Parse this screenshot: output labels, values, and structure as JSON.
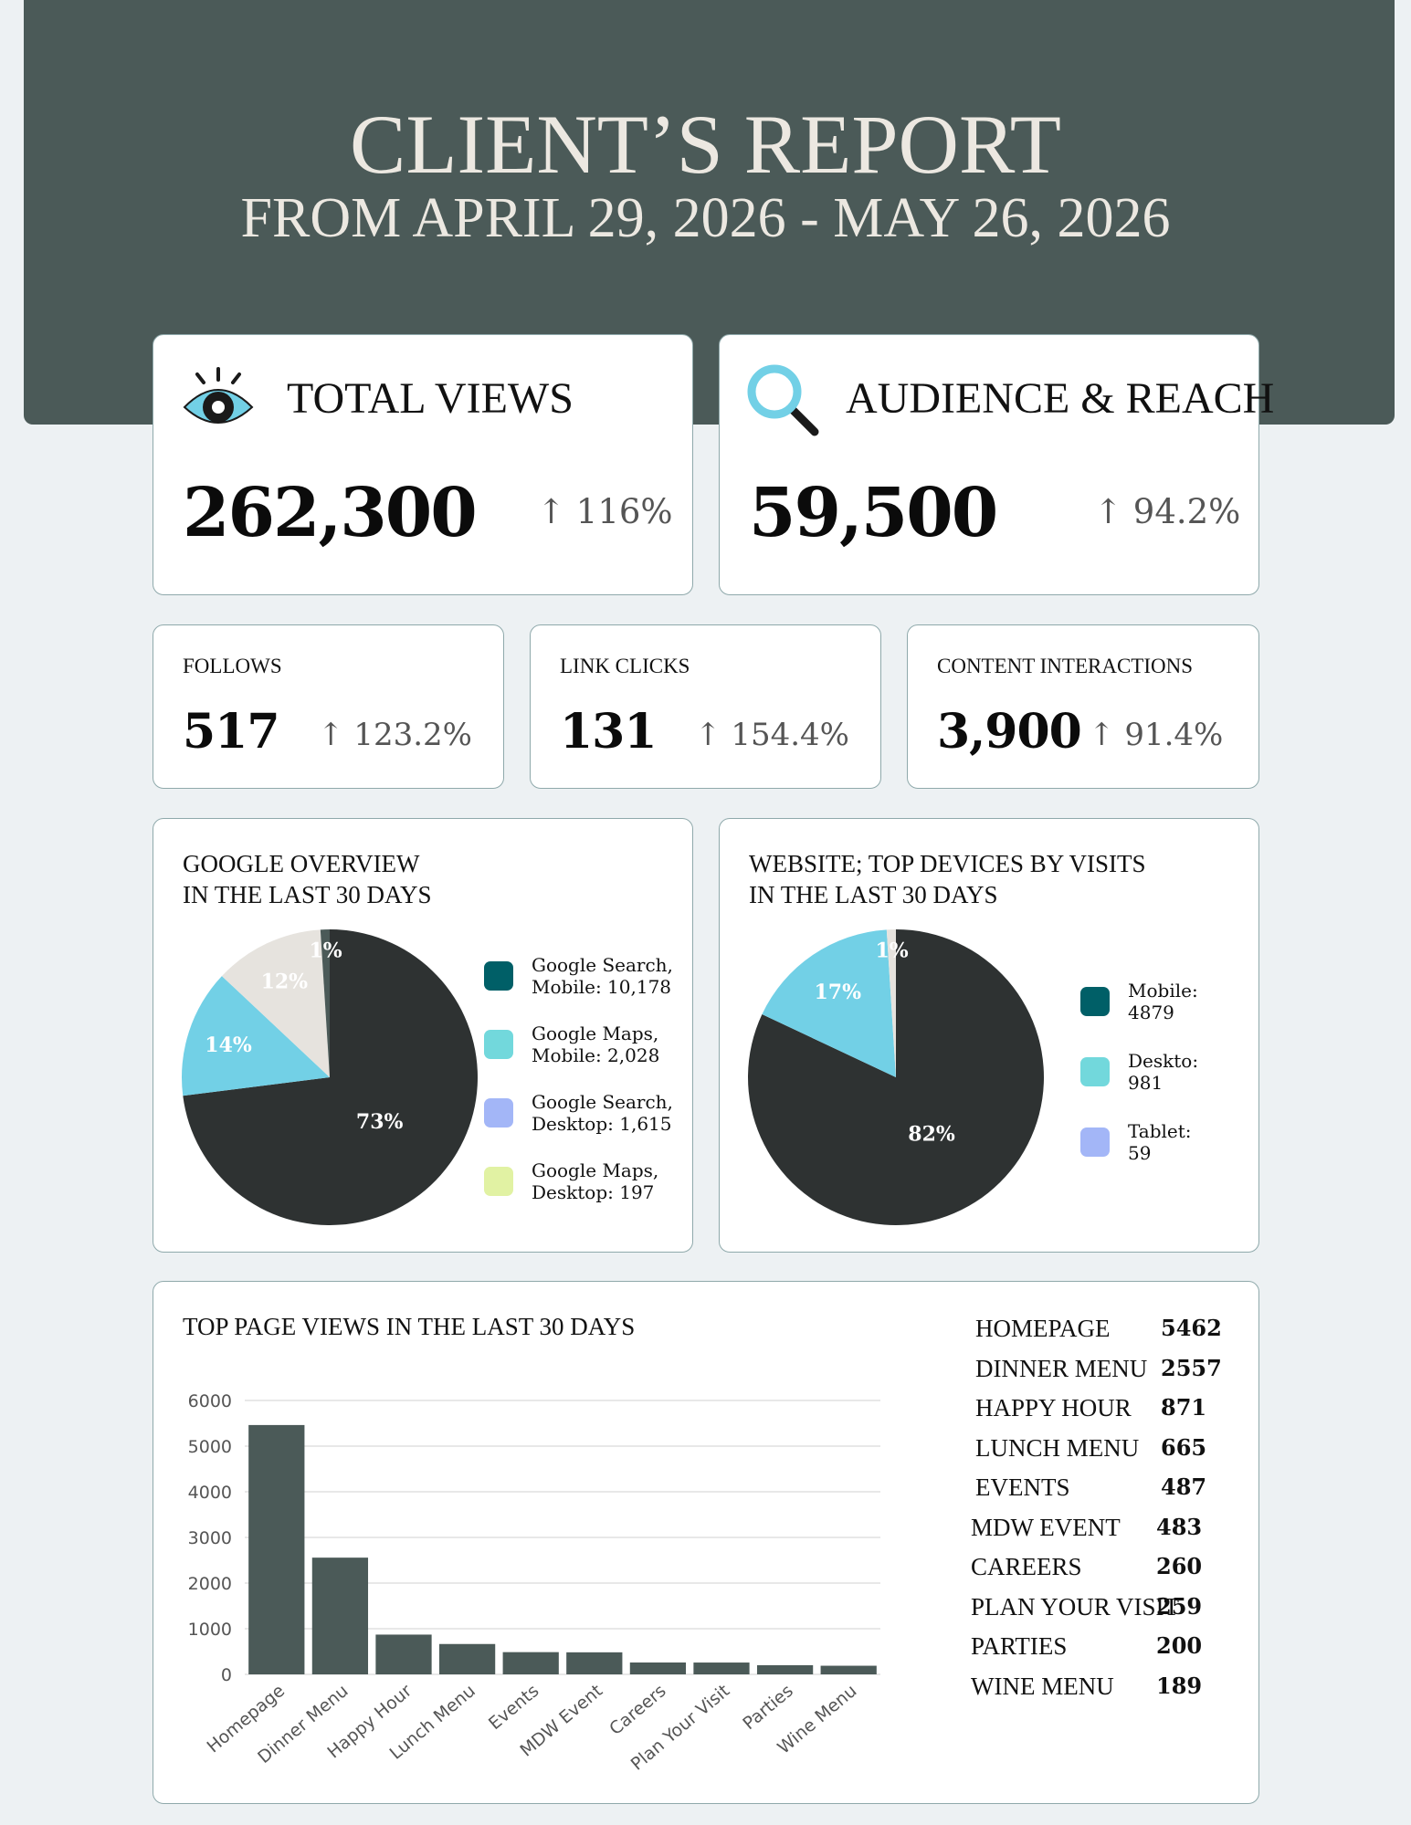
{
  "header": {
    "title": "CLIENT’S REPORT",
    "subtitle": "FROM APRIL 29, 2026 - MAY 26, 2026"
  },
  "total_views": {
    "title": "TOTAL VIEWS",
    "value": "262,300",
    "change": "116%",
    "icon": "eye-icon"
  },
  "audience": {
    "title": "AUDIENCE & REACH",
    "value": "59,500",
    "change": "94.2%",
    "icon": "magnifier-icon"
  },
  "follows": {
    "title": "FOLLOWS",
    "value": "517",
    "change": "123.2%"
  },
  "link_clicks": {
    "title": "LINK CLICKS",
    "value": "131",
    "change": "154.4%"
  },
  "interactions": {
    "title": "CONTENT INTERACTIONS",
    "value": "3,900",
    "change": "91.4%"
  },
  "arrow": "↑",
  "chart_data": [
    {
      "type": "pie",
      "title": "GOOGLE OVERVIEW\nIN THE LAST 30 DAYS",
      "title_lines": [
        "GOOGLE OVERVIEW",
        "IN THE LAST 30 DAYS"
      ],
      "slices": [
        {
          "label": "Google Search, Mobile: 10,178",
          "label_lines": [
            "Google Search,",
            "Mobile: 10,178"
          ],
          "value": 73,
          "text": "73%",
          "slice_color": "#2e3232",
          "legend_color": "#005f67"
        },
        {
          "label": "Google Maps, Mobile: 2,028",
          "label_lines": [
            "Google Maps,",
            "Mobile: 2,028"
          ],
          "value": 14,
          "text": "14%",
          "slice_color": "#72d0e6",
          "legend_color": "#72d8dc"
        },
        {
          "label": "Google Search, Desktop: 1,615",
          "label_lines": [
            "Google Search,",
            "Desktop: 1,615"
          ],
          "value": 12,
          "text": "12%",
          "slice_color": "#e6e3de",
          "legend_color": "#a3b6f7"
        },
        {
          "label": "Google Maps, Desktop: 197",
          "label_lines": [
            "Google Maps,",
            "Desktop: 197"
          ],
          "value": 1,
          "text": "1%",
          "slice_color": "#4b5a58",
          "legend_color": "#e1f2a3"
        }
      ]
    },
    {
      "type": "pie",
      "title": "WEBSITE; TOP DEVICES BY VISITS\nIN THE LAST 30 DAYS",
      "title_lines": [
        "WEBSITE; TOP DEVICES BY VISITS",
        "IN THE LAST 30 DAYS"
      ],
      "slices": [
        {
          "label": "Mobile: 4879",
          "label_lines": [
            "Mobile:",
            "4879"
          ],
          "value": 82,
          "text": "82%",
          "slice_color": "#2e3232",
          "legend_color": "#005f67"
        },
        {
          "label": "Deskto: 981",
          "label_lines": [
            "Deskto:",
            "981"
          ],
          "value": 17,
          "text": "17%",
          "slice_color": "#72d0e6",
          "legend_color": "#72d8dc"
        },
        {
          "label": "Tablet: 59",
          "label_lines": [
            "Tablet:",
            "59"
          ],
          "value": 1,
          "text": "1%",
          "slice_color": "#e6e3de",
          "legend_color": "#a3b6f7"
        }
      ]
    },
    {
      "type": "bar",
      "title": "TOP PAGE VIEWS IN THE LAST 30 DAYS",
      "categories": [
        "Homepage",
        "Dinner Menu",
        "Happy Hour",
        "Lunch Menu",
        "Events",
        "MDW Event",
        "Careers",
        "Plan Your Visit",
        "Parties",
        "Wine Menu"
      ],
      "values": [
        5462,
        2557,
        871,
        665,
        487,
        483,
        260,
        259,
        200,
        189
      ],
      "ylim": [
        0,
        6000
      ],
      "yticks": [
        0,
        1000,
        2000,
        3000,
        4000,
        5000,
        6000
      ],
      "grid": true,
      "bar_color": "#4b5a58"
    }
  ],
  "page_table": [
    {
      "name": "HOMEPAGE",
      "value": "5462"
    },
    {
      "name": "DINNER MENU",
      "value": "2557"
    },
    {
      "name": "HAPPY HOUR",
      "value": "871"
    },
    {
      "name": "LUNCH MENU",
      "value": "665"
    },
    {
      "name": "EVENTS",
      "value": "487"
    },
    {
      "name": "MDW EVENT",
      "value": "483"
    },
    {
      "name": "CAREERS",
      "value": "260"
    },
    {
      "name": "PLAN YOUR VISIT",
      "value": "259"
    },
    {
      "name": "PARTIES",
      "value": "200"
    },
    {
      "name": "WINE MENU",
      "value": "189"
    }
  ]
}
